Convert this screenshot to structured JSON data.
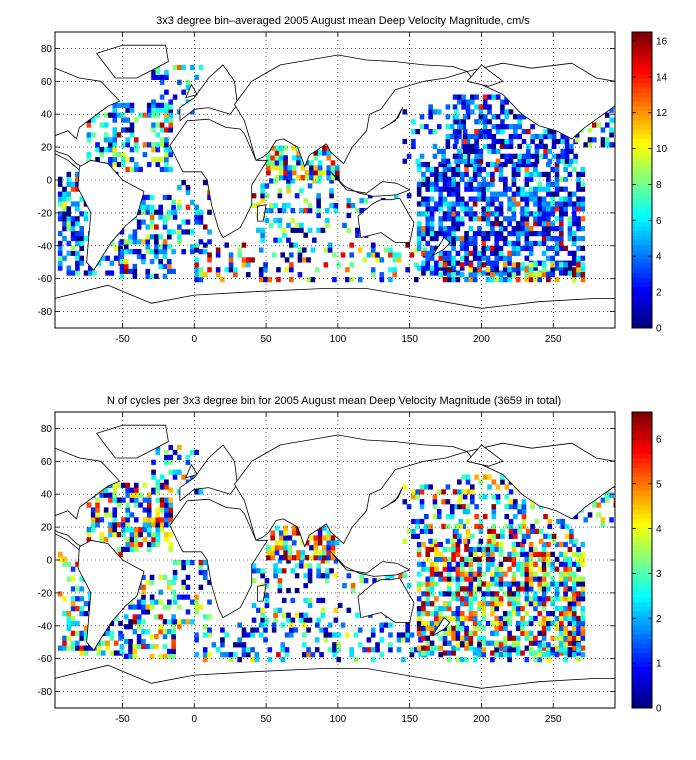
{
  "figure": {
    "background": "#ffffff"
  },
  "chart_data": [
    {
      "type": "heatmap",
      "title": "3x3 degree bin–averaged 2005 August mean Deep Velocity Magnitude, cm/s",
      "xlabel": "",
      "ylabel": "",
      "xlim": [
        -97,
        293
      ],
      "ylim": [
        -90,
        90
      ],
      "xticks": [
        -50,
        0,
        50,
        100,
        150,
        200,
        250
      ],
      "yticks": [
        -80,
        -60,
        -40,
        -20,
        0,
        20,
        40,
        60,
        80
      ],
      "grid": true,
      "colormap": "jet",
      "clim": [
        0,
        16.5
      ],
      "colorbar_ticks": [
        0,
        2,
        4,
        6,
        8,
        10,
        12,
        14,
        16
      ],
      "colorbar_position": "right",
      "bin_size_deg": 3,
      "land_color": "#ffffff",
      "coastline_color": "#000000",
      "regions": [
        {
          "lon": [
            -95,
            -52
          ],
          "lat": [
            -58,
            3
          ],
          "density": 0.58,
          "mean": 3.8,
          "spread": 2.6
        },
        {
          "lon": [
            -52,
            -15
          ],
          "lat": [
            -60,
            -10
          ],
          "density": 0.55,
          "mean": 4.2,
          "spread": 3.2
        },
        {
          "lon": [
            -75,
            -15
          ],
          "lat": [
            5,
            45
          ],
          "density": 0.5,
          "mean": 4.5,
          "spread": 3.0
        },
        {
          "lon": [
            -30,
            5
          ],
          "lat": [
            40,
            68
          ],
          "density": 0.25,
          "mean": 4.0,
          "spread": 2.5
        },
        {
          "lon": [
            -15,
            10
          ],
          "lat": [
            -45,
            0
          ],
          "density": 0.35,
          "mean": 4.0,
          "spread": 3.0
        },
        {
          "lon": [
            40,
            100
          ],
          "lat": [
            -38,
            0
          ],
          "density": 0.3,
          "mean": 4.5,
          "spread": 3.0
        },
        {
          "lon": [
            50,
            100
          ],
          "lat": [
            0,
            20
          ],
          "density": 0.7,
          "mean": 7.0,
          "spread": 4.5
        },
        {
          "lon": [
            0,
            160
          ],
          "lat": [
            -62,
            -38
          ],
          "density": 0.3,
          "mean": 6.0,
          "spread": 5.0
        },
        {
          "lon": [
            100,
            150
          ],
          "lat": [
            -35,
            -10
          ],
          "density": 0.25,
          "mean": 4.0,
          "spread": 2.0
        },
        {
          "lon": [
            155,
            270
          ],
          "lat": [
            -58,
            10
          ],
          "density": 0.7,
          "mean": 3.0,
          "spread": 2.2
        },
        {
          "lon": [
            180,
            265
          ],
          "lat": [
            10,
            50
          ],
          "density": 0.55,
          "mean": 2.5,
          "spread": 2.0
        },
        {
          "lon": [
            145,
            190
          ],
          "lat": [
            10,
            45
          ],
          "density": 0.35,
          "mean": 3.0,
          "spread": 2.0
        },
        {
          "lon": [
            170,
            270
          ],
          "lat": [
            -62,
            -50
          ],
          "density": 0.5,
          "mean": 8.0,
          "spread": 5.0
        },
        {
          "lon": [
            265,
            293
          ],
          "lat": [
            20,
            45
          ],
          "density": 0.3,
          "mean": 5.0,
          "spread": 4.0
        }
      ]
    },
    {
      "type": "heatmap",
      "title": "N of cycles per 3x3 degree bin for 2005 August mean Deep Velocity Magnitude (3659 in total)",
      "xlabel": "",
      "ylabel": "",
      "xlim": [
        -97,
        293
      ],
      "ylim": [
        -90,
        90
      ],
      "xticks": [
        -50,
        0,
        50,
        100,
        150,
        200,
        250
      ],
      "yticks": [
        -80,
        -60,
        -40,
        -20,
        0,
        20,
        40,
        60,
        80
      ],
      "grid": true,
      "colormap": "jet",
      "clim": [
        0,
        6.6
      ],
      "colorbar_ticks": [
        0,
        1,
        2,
        3,
        4,
        5,
        6
      ],
      "colorbar_position": "right",
      "total_cycles": 3659,
      "bin_size_deg": 3,
      "land_color": "#ffffff",
      "coastline_color": "#000000",
      "regions": [
        {
          "lon": [
            -95,
            -52
          ],
          "lat": [
            -58,
            3
          ],
          "density": 0.45,
          "mean": 2.5,
          "spread": 1.8
        },
        {
          "lon": [
            -52,
            -15
          ],
          "lat": [
            -60,
            -10
          ],
          "density": 0.45,
          "mean": 2.5,
          "spread": 1.8
        },
        {
          "lon": [
            -75,
            -15
          ],
          "lat": [
            5,
            45
          ],
          "density": 0.55,
          "mean": 3.0,
          "spread": 2.0
        },
        {
          "lon": [
            -30,
            5
          ],
          "lat": [
            40,
            68
          ],
          "density": 0.25,
          "mean": 2.0,
          "spread": 1.5
        },
        {
          "lon": [
            -15,
            10
          ],
          "lat": [
            -45,
            0
          ],
          "density": 0.3,
          "mean": 2.0,
          "spread": 1.5
        },
        {
          "lon": [
            40,
            100
          ],
          "lat": [
            -38,
            0
          ],
          "density": 0.3,
          "mean": 2.0,
          "spread": 1.5
        },
        {
          "lon": [
            50,
            100
          ],
          "lat": [
            0,
            20
          ],
          "density": 0.7,
          "mean": 4.5,
          "spread": 2.0
        },
        {
          "lon": [
            0,
            160
          ],
          "lat": [
            -62,
            -38
          ],
          "density": 0.3,
          "mean": 1.5,
          "spread": 1.2
        },
        {
          "lon": [
            100,
            150
          ],
          "lat": [
            -35,
            -10
          ],
          "density": 0.25,
          "mean": 2.0,
          "spread": 1.5
        },
        {
          "lon": [
            155,
            270
          ],
          "lat": [
            -58,
            10
          ],
          "density": 0.65,
          "mean": 3.0,
          "spread": 2.0
        },
        {
          "lon": [
            180,
            265
          ],
          "lat": [
            10,
            50
          ],
          "density": 0.4,
          "mean": 3.0,
          "spread": 2.0
        },
        {
          "lon": [
            145,
            190
          ],
          "lat": [
            10,
            45
          ],
          "density": 0.3,
          "mean": 2.5,
          "spread": 1.8
        },
        {
          "lon": [
            170,
            270
          ],
          "lat": [
            -62,
            -50
          ],
          "density": 0.35,
          "mean": 2.0,
          "spread": 1.5
        },
        {
          "lon": [
            265,
            293
          ],
          "lat": [
            20,
            45
          ],
          "density": 0.3,
          "mean": 3.0,
          "spread": 2.0
        }
      ]
    }
  ],
  "land": [
    {
      "name": "north-america",
      "lon": [
        -170,
        -125,
        -97,
        -80,
        -65,
        -52,
        -60,
        -80,
        -82,
        -88,
        -97,
        -105,
        -118,
        -130,
        -145,
        -165,
        -170
      ],
      "lat": [
        66,
        71,
        68,
        62,
        60,
        48,
        45,
        32,
        25,
        30,
        27,
        22,
        33,
        52,
        60,
        60,
        66
      ]
    },
    {
      "name": "central-america",
      "lon": [
        -105,
        -95,
        -88,
        -82,
        -78,
        -80,
        -88,
        -97,
        -105
      ],
      "lat": [
        22,
        17,
        15,
        10,
        8,
        6,
        12,
        16,
        22
      ]
    },
    {
      "name": "greenland",
      "lon": [
        -50,
        -20,
        -18,
        -40,
        -55,
        -68,
        -50
      ],
      "lat": [
        82,
        82,
        72,
        62,
        62,
        77,
        82
      ]
    },
    {
      "name": "south-america",
      "lon": [
        -80,
        -72,
        -60,
        -50,
        -35,
        -40,
        -48,
        -58,
        -68,
        -70,
        -75,
        -72,
        -81,
        -80
      ],
      "lat": [
        8,
        12,
        10,
        0,
        -7,
        -22,
        -28,
        -38,
        -52,
        -55,
        -50,
        -20,
        -5,
        8
      ]
    },
    {
      "name": "europe-asia",
      "lon": [
        -10,
        0,
        10,
        25,
        30,
        28,
        20,
        10,
        0,
        -10,
        -10
      ],
      "lat": [
        36,
        43,
        44,
        40,
        46,
        60,
        70,
        62,
        50,
        44,
        36
      ]
    },
    {
      "name": "asia",
      "lon": [
        28,
        40,
        60,
        80,
        100,
        120,
        140,
        160,
        180,
        190,
        175,
        160,
        140,
        130,
        122,
        120,
        110,
        104,
        100,
        95,
        92,
        80,
        77,
        72,
        62,
        57,
        52,
        48,
        43,
        35,
        28
      ],
      "lat": [
        46,
        60,
        70,
        73,
        76,
        73,
        72,
        70,
        69,
        66,
        62,
        60,
        55,
        43,
        40,
        30,
        20,
        10,
        13,
        17,
        22,
        15,
        8,
        20,
        25,
        24,
        17,
        14,
        12,
        36,
        46
      ]
    },
    {
      "name": "africa",
      "lon": [
        -17,
        -5,
        10,
        22,
        32,
        35,
        43,
        51,
        40,
        40,
        35,
        32,
        20,
        17,
        12,
        9,
        5,
        -8,
        -17
      ],
      "lat": [
        21,
        36,
        37,
        32,
        31,
        28,
        12,
        12,
        -3,
        -15,
        -24,
        -29,
        -35,
        -30,
        -15,
        0,
        5,
        5,
        21
      ]
    },
    {
      "name": "madagascar",
      "lon": [
        44,
        50,
        48,
        44,
        44
      ],
      "lat": [
        -16,
        -15,
        -25,
        -25,
        -16
      ]
    },
    {
      "name": "australia",
      "lon": [
        114,
        125,
        130,
        137,
        143,
        153,
        150,
        140,
        130,
        116,
        114
      ],
      "lat": [
        -22,
        -14,
        -12,
        -12,
        -11,
        -26,
        -38,
        -38,
        -32,
        -35,
        -22
      ]
    },
    {
      "name": "new-zealand",
      "lon": [
        166,
        174,
        178,
        174,
        166
      ],
      "lat": [
        -46,
        -35,
        -38,
        -42,
        -46
      ]
    },
    {
      "name": "indonesia",
      "lon": [
        95,
        106,
        120,
        131,
        141,
        150,
        141,
        125,
        115,
        105,
        95
      ],
      "lat": [
        5,
        -6,
        -8,
        -1,
        -2,
        -6,
        -9,
        -10,
        -8,
        -4,
        5
      ]
    },
    {
      "name": "japan",
      "lon": [
        130,
        136,
        142,
        145,
        140,
        130
      ],
      "lat": [
        31,
        34,
        38,
        44,
        36,
        31
      ]
    },
    {
      "name": "uk",
      "lon": [
        -6,
        2,
        -2,
        -6
      ],
      "lat": [
        50,
        52,
        58,
        50
      ]
    },
    {
      "name": "antarctica",
      "lon": [
        -97,
        -60,
        -30,
        0,
        40,
        90,
        120,
        160,
        200,
        240,
        280,
        293,
        293,
        -97,
        -97
      ],
      "lat": [
        -72,
        -64,
        -75,
        -70,
        -68,
        -66,
        -66,
        -72,
        -78,
        -74,
        -72,
        -72,
        -90,
        -90,
        -72
      ]
    },
    {
      "name": "north-america-east",
      "lon": [
        190,
        215,
        235,
        263,
        280,
        293,
        293,
        272,
        263,
        252,
        240,
        228,
        215,
        195,
        190
      ],
      "lat": [
        66,
        71,
        68,
        71,
        62,
        60,
        45,
        32,
        25,
        30,
        33,
        40,
        52,
        60,
        66
      ]
    },
    {
      "name": "alaska",
      "lon": [
        190,
        200,
        215,
        205,
        190
      ],
      "lat": [
        60,
        70,
        60,
        57,
        60
      ]
    },
    {
      "name": "greenland-east",
      "lon": [
        293,
        293
      ],
      "lat": [
        77,
        82
      ]
    }
  ]
}
